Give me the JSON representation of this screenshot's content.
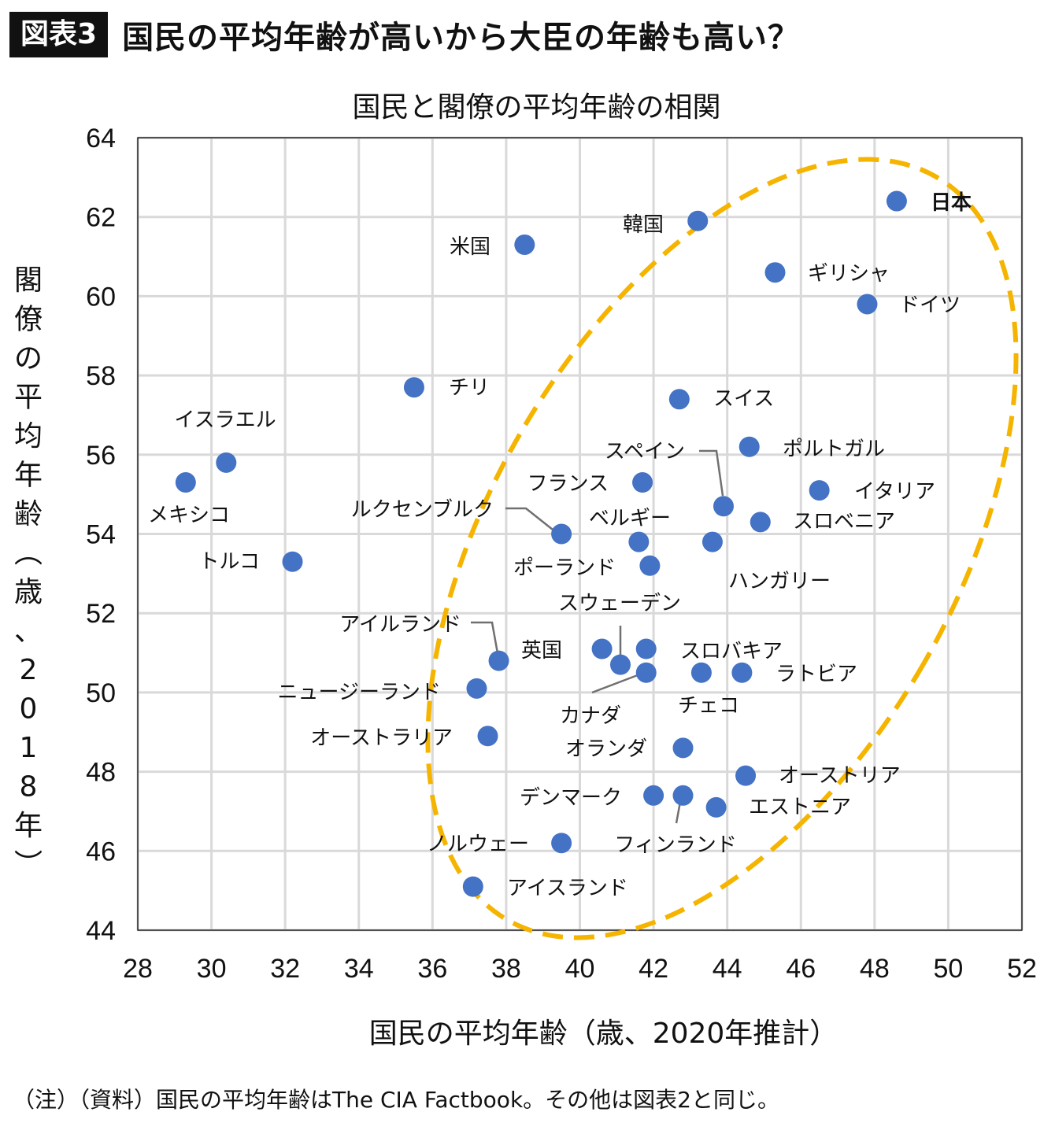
{
  "header": {
    "badge": "図表3",
    "headline": "国民の平均年齢が高いから大臣の年齢も高い？"
  },
  "footnote": "（注）（資料）国民の平均年齢はThe CIA Factbook。その他は図表2と同じ。",
  "colors": {
    "point": "#4472C4",
    "highlight_label": "#E8141B",
    "ellipse": "#F5B400",
    "grid": "#D9D9D9",
    "leader": "#707070"
  },
  "chart_data": {
    "type": "scatter",
    "title": "国民と閣僚の平均年齢の相関",
    "xlabel": "国民の平均年齢（歳、2020年推計）",
    "ylabel_chars": [
      "閣",
      "僚",
      "の",
      "平",
      "均",
      "年",
      "齢",
      "︵",
      "歳",
      "、",
      "2",
      "0",
      "1",
      "8",
      "年",
      "︶"
    ],
    "xlim": [
      28,
      52
    ],
    "ylim": [
      44,
      64
    ],
    "x_ticks": [
      28,
      30,
      32,
      34,
      36,
      38,
      40,
      42,
      44,
      46,
      48,
      50,
      52
    ],
    "y_ticks": [
      44,
      46,
      48,
      50,
      52,
      54,
      56,
      58,
      60,
      62,
      64
    ],
    "grid": true,
    "points": [
      {
        "label": "日本",
        "x": 48.6,
        "y": 62.4,
        "highlight": true
      },
      {
        "label": "韓国",
        "x": 43.2,
        "y": 61.9
      },
      {
        "label": "米国",
        "x": 38.5,
        "y": 61.3
      },
      {
        "label": "ギリシャ",
        "x": 45.3,
        "y": 60.6
      },
      {
        "label": "ドイツ",
        "x": 47.8,
        "y": 59.8
      },
      {
        "label": "チリ",
        "x": 35.5,
        "y": 57.7
      },
      {
        "label": "スイス",
        "x": 42.7,
        "y": 57.4
      },
      {
        "label": "イスラエル",
        "x": 30.4,
        "y": 55.8
      },
      {
        "label": "メキシコ",
        "x": 29.3,
        "y": 55.3
      },
      {
        "label": "ポルトガル",
        "x": 44.6,
        "y": 56.2
      },
      {
        "label": "フランス",
        "x": 41.7,
        "y": 55.3
      },
      {
        "label": "イタリア",
        "x": 46.5,
        "y": 55.1
      },
      {
        "label": "スペイン",
        "x": 43.9,
        "y": 54.7
      },
      {
        "label": "スロベニア",
        "x": 44.9,
        "y": 54.3
      },
      {
        "label": "ルクセンブルク",
        "x": 39.5,
        "y": 54.0
      },
      {
        "label": "ベルギー",
        "x": 41.6,
        "y": 53.8
      },
      {
        "label": "ハンガリー",
        "x": 43.6,
        "y": 53.8
      },
      {
        "label": "トルコ",
        "x": 32.2,
        "y": 53.3
      },
      {
        "label": "ポーランド",
        "x": 41.9,
        "y": 53.2
      },
      {
        "label": "アイルランド",
        "x": 37.8,
        "y": 50.8
      },
      {
        "label": "英国",
        "x": 40.6,
        "y": 51.1
      },
      {
        "label": "スウェーデン",
        "x": 41.1,
        "y": 50.7
      },
      {
        "label": "スロバキア",
        "x": 41.8,
        "y": 51.1
      },
      {
        "label": "カナダ",
        "x": 41.8,
        "y": 50.5
      },
      {
        "label": "チェコ",
        "x": 43.3,
        "y": 50.5
      },
      {
        "label": "ラトビア",
        "x": 44.4,
        "y": 50.5
      },
      {
        "label": "ニュージーランド",
        "x": 37.2,
        "y": 50.1
      },
      {
        "label": "オーストラリア",
        "x": 37.5,
        "y": 48.9
      },
      {
        "label": "オランダ",
        "x": 42.8,
        "y": 48.6
      },
      {
        "label": "オーストリア",
        "x": 44.5,
        "y": 47.9
      },
      {
        "label": "デンマーク",
        "x": 42.0,
        "y": 47.4
      },
      {
        "label": "フィンランド",
        "x": 42.8,
        "y": 47.4
      },
      {
        "label": "エストニア",
        "x": 43.7,
        "y": 47.1
      },
      {
        "label": "ノルウェー",
        "x": 39.5,
        "y": 46.2
      },
      {
        "label": "アイスランド",
        "x": 37.1,
        "y": 45.1
      }
    ]
  }
}
